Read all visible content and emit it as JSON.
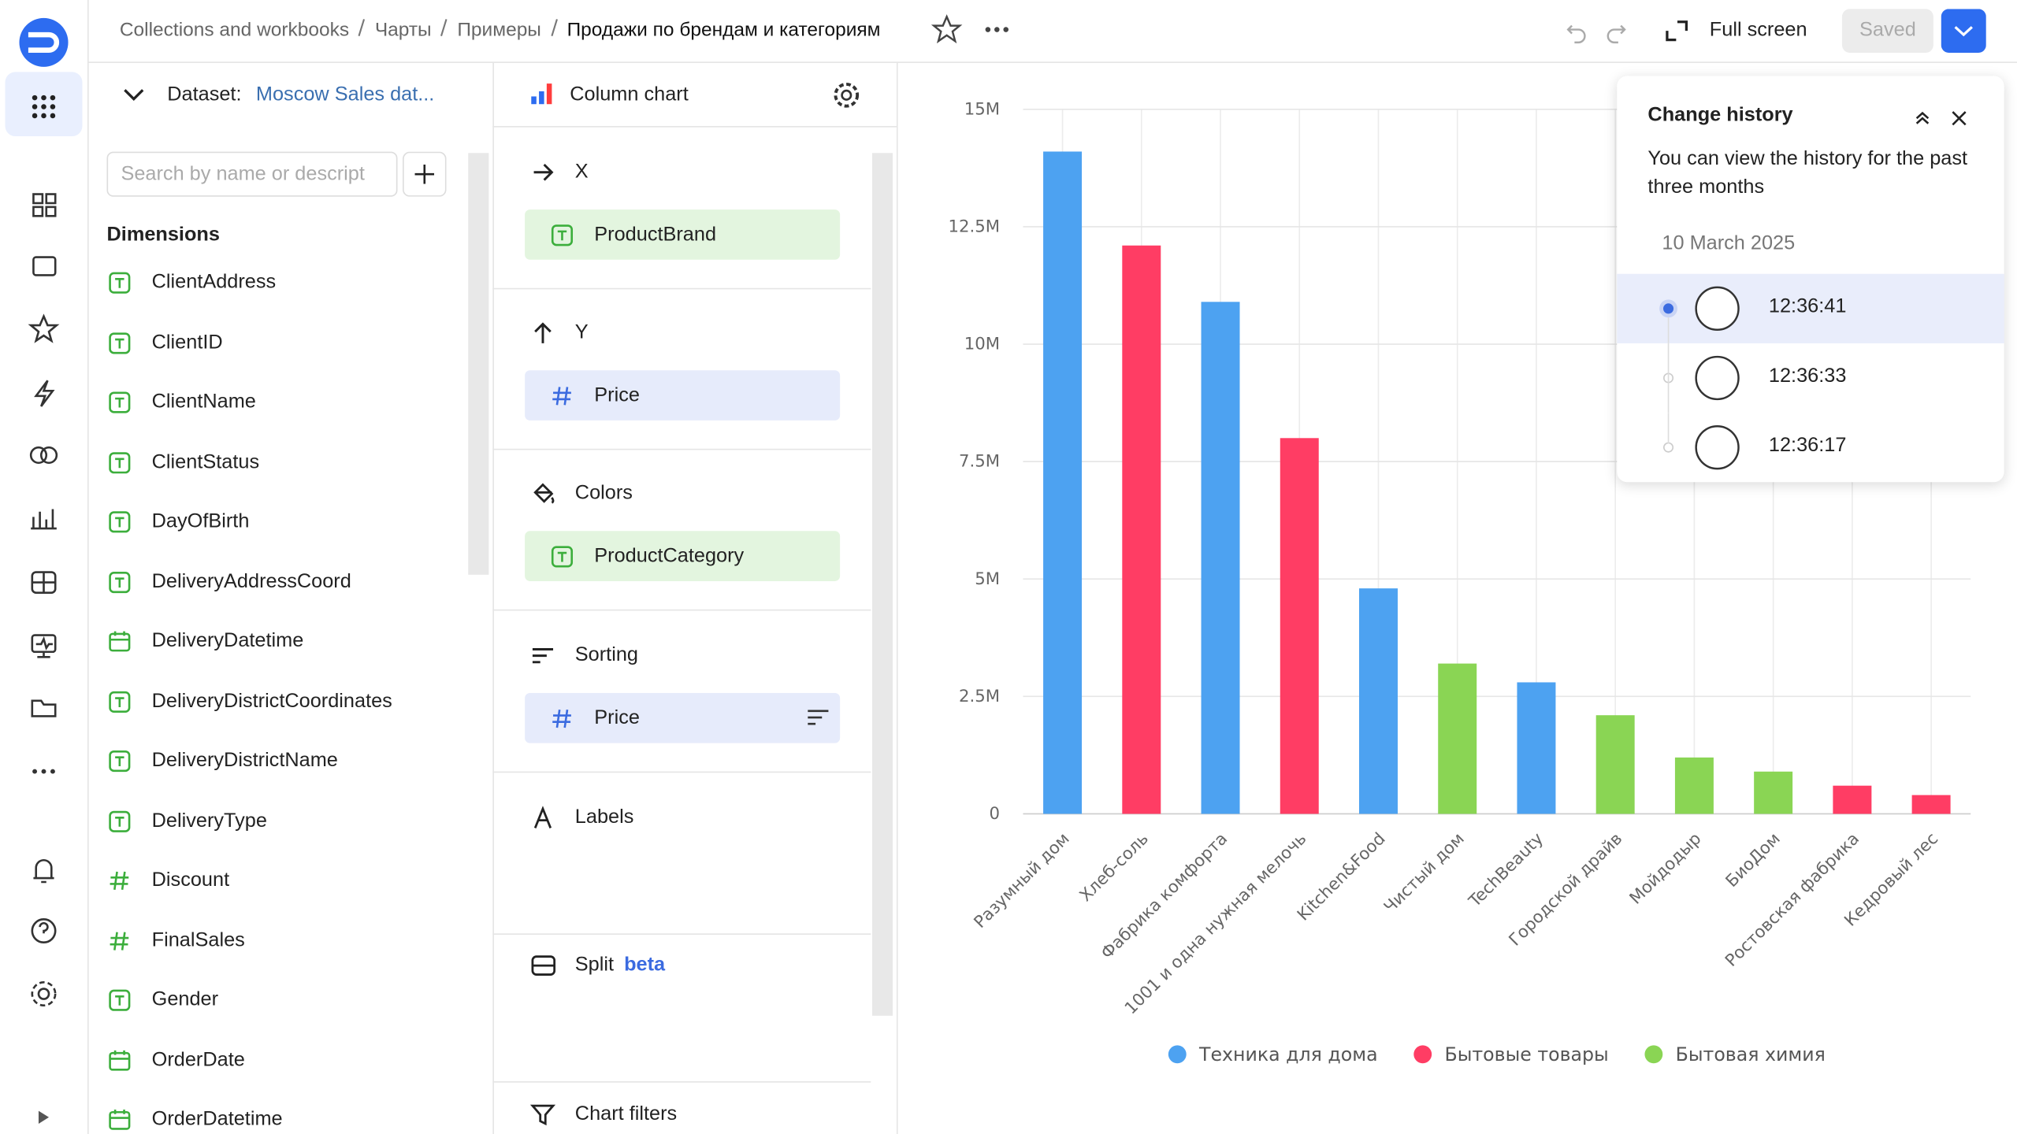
{
  "breadcrumbs": [
    "Collections and workbooks",
    "Чарты",
    "Примеры",
    "Продажи по брендам и категориям"
  ],
  "toolbar": {
    "fullscreen": "Full screen",
    "saved": "Saved"
  },
  "dataset": {
    "label": "Dataset:",
    "name": "Moscow Sales dat...",
    "search_placeholder": "Search by name or descript",
    "section": "Dimensions",
    "fields": [
      {
        "name": "ClientAddress",
        "kind": "text"
      },
      {
        "name": "ClientID",
        "kind": "text"
      },
      {
        "name": "ClientName",
        "kind": "text"
      },
      {
        "name": "ClientStatus",
        "kind": "text"
      },
      {
        "name": "DayOfBirth",
        "kind": "text"
      },
      {
        "name": "DeliveryAddressCoord",
        "kind": "text"
      },
      {
        "name": "DeliveryDatetime",
        "kind": "date"
      },
      {
        "name": "DeliveryDistrictCoordinates",
        "kind": "text"
      },
      {
        "name": "DeliveryDistrictName",
        "kind": "text"
      },
      {
        "name": "DeliveryType",
        "kind": "text"
      },
      {
        "name": "Discount",
        "kind": "number"
      },
      {
        "name": "FinalSales",
        "kind": "number"
      },
      {
        "name": "Gender",
        "kind": "text"
      },
      {
        "name": "OrderDate",
        "kind": "date"
      },
      {
        "name": "OrderDatetime",
        "kind": "date"
      }
    ]
  },
  "wizard": {
    "chart_type": "Column chart",
    "sections": [
      {
        "title": "X",
        "field": "ProductBrand",
        "kind": "text"
      },
      {
        "title": "Y",
        "field": "Price",
        "kind": "number"
      },
      {
        "title": "Colors",
        "field": "ProductCategory",
        "kind": "text"
      },
      {
        "title": "Sorting",
        "field": "Price",
        "kind": "number"
      },
      {
        "title": "Labels"
      },
      {
        "title": "Split",
        "badge": "beta"
      },
      {
        "title": "Chart filters"
      }
    ]
  },
  "history": {
    "title": "Change history",
    "description": "You can view the history for the past three months",
    "date": "10 March 2025",
    "entries": [
      "12:36:41",
      "12:36:33",
      "12:36:17"
    ]
  },
  "chart_data": {
    "type": "bar",
    "categories": [
      "Разумный дом",
      "Хлеб-соль",
      "Фабрика комфорта",
      "1001 и одна нужная мелочь",
      "Kitchen&Food",
      "Чистый дом",
      "TechBeauty",
      "Городской драйв",
      "Мойдодыр",
      "БиоДом",
      "Ростовская фабрика",
      "Кедровый лес"
    ],
    "series": [
      {
        "name": "Техника для дома",
        "color": "#4da2f1",
        "values": [
          14100000,
          null,
          10900000,
          null,
          4800000,
          null,
          2800000,
          null,
          null,
          null,
          null,
          null
        ]
      },
      {
        "name": "Бытовые товары",
        "color": "#ff3d64",
        "values": [
          null,
          12100000,
          null,
          8000000,
          null,
          null,
          null,
          null,
          null,
          null,
          600000,
          400000
        ]
      },
      {
        "name": "Бытовая химия",
        "color": "#8ad554",
        "values": [
          null,
          null,
          null,
          null,
          null,
          3200000,
          null,
          2100000,
          1200000,
          900000,
          null,
          null
        ]
      }
    ],
    "ylim": [
      0,
      15000000
    ],
    "yticks": [
      0,
      {
        "value": 2500000,
        "label": "2.5M"
      },
      {
        "value": 5000000,
        "label": "5M"
      },
      {
        "value": 7500000,
        "label": "7.5M"
      },
      {
        "value": 10000000,
        "label": "10M"
      },
      {
        "value": 12500000,
        "label": "12.5M"
      },
      {
        "value": 15000000,
        "label": "15M"
      }
    ],
    "grid": true,
    "legend": "bottom"
  }
}
